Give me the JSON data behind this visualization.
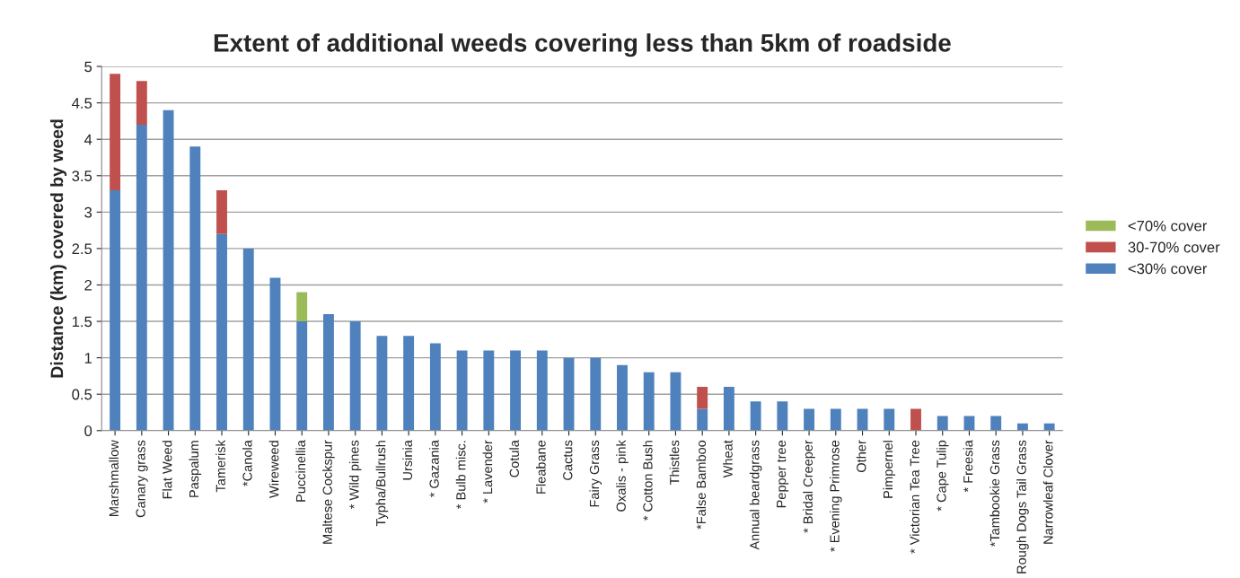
{
  "chart_data": {
    "type": "bar",
    "title": "Extent of additional weeds covering less than 5km of roadside",
    "ylabel": "Distance (km) covered by weed",
    "categories": [
      "Marshmallow",
      "Canary grass",
      "Flat Weed",
      "Paspalum",
      "Tamerisk",
      "*Canola",
      "Wireweed",
      "Puccinellia",
      "Maltese Cockspur",
      "* Wild pines",
      "Typha/Bullrush",
      "Ursinia",
      "* Gazania",
      "* Bulb misc.",
      "* Lavender",
      "Cotula",
      "Fleabane",
      "Cactus",
      "Fairy Grass",
      "Oxalis - pink",
      "* Cotton Bush",
      "Thistles",
      "*False Bamboo",
      "Wheat",
      "Annual beardgrass",
      "Pepper tree",
      "* Bridal Creeper",
      "* Evening Primrose",
      "Other",
      "Pimpernel",
      "* Victorian Tea Tree",
      "* Cape Tulip",
      "* Freesia",
      "*Tambookie Grass",
      "Rough Dogs Tail Grass",
      "Narrowleaf Clover"
    ],
    "stacked": true,
    "series": [
      {
        "name": "<30% cover",
        "color": "#4f81bd",
        "values": [
          3.3,
          4.2,
          4.4,
          3.9,
          2.7,
          2.5,
          2.1,
          1.5,
          1.6,
          1.5,
          1.3,
          1.3,
          1.2,
          1.1,
          1.1,
          1.1,
          1.1,
          1.0,
          1.0,
          0.9,
          0.8,
          0.8,
          0.3,
          0.6,
          0.4,
          0.4,
          0.3,
          0.3,
          0.3,
          0.3,
          null,
          0.2,
          0.2,
          0.2,
          0.1,
          0.1
        ]
      },
      {
        "name": "30-70% cover",
        "color": "#c0504d",
        "values": [
          1.6,
          0.6,
          null,
          null,
          0.6,
          null,
          null,
          null,
          null,
          null,
          null,
          null,
          null,
          null,
          null,
          null,
          null,
          null,
          null,
          null,
          null,
          null,
          0.3,
          null,
          null,
          null,
          null,
          null,
          null,
          null,
          0.3,
          null,
          null,
          null,
          null,
          null
        ]
      },
      {
        "name": "<70% cover",
        "color": "#9bbb59",
        "values": [
          null,
          null,
          null,
          null,
          null,
          null,
          null,
          0.4,
          null,
          null,
          null,
          null,
          null,
          null,
          null,
          null,
          null,
          null,
          null,
          null,
          null,
          null,
          null,
          null,
          null,
          null,
          null,
          null,
          null,
          null,
          null,
          null,
          null,
          null,
          null,
          null
        ]
      }
    ],
    "ylim": [
      0,
      5
    ],
    "yticks": [
      0,
      0.5,
      1,
      1.5,
      2,
      2.5,
      3,
      3.5,
      4,
      4.5,
      5
    ],
    "grid": "y",
    "legend": "right"
  }
}
